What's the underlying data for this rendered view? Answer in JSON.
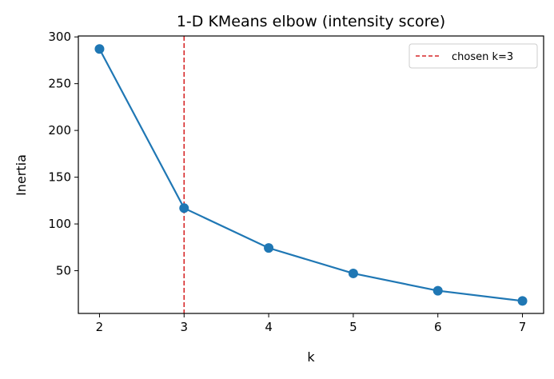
{
  "chart_data": {
    "type": "line",
    "title": "1-D KMeans elbow (intensity score)",
    "xlabel": "k",
    "ylabel": "Inertia",
    "x": [
      2,
      3,
      4,
      5,
      6,
      7
    ],
    "series": [
      {
        "values": [
          287.1,
          116.9,
          74.3,
          47.1,
          28.6,
          17.7
        ],
        "color": "#1f77b4",
        "marker": "circle"
      }
    ],
    "vline": {
      "x": 3,
      "label": "chosen k=3",
      "color": "#d62728",
      "style": "dashed"
    },
    "xticks": [
      "2",
      "3",
      "4",
      "5",
      "6",
      "7"
    ],
    "yticks": [
      "50",
      "100",
      "150",
      "200",
      "250",
      "300"
    ],
    "xlim": [
      1.75,
      7.25
    ],
    "ylim": [
      4.3,
      301
    ],
    "grid": false,
    "legend_placement": "top-right"
  }
}
